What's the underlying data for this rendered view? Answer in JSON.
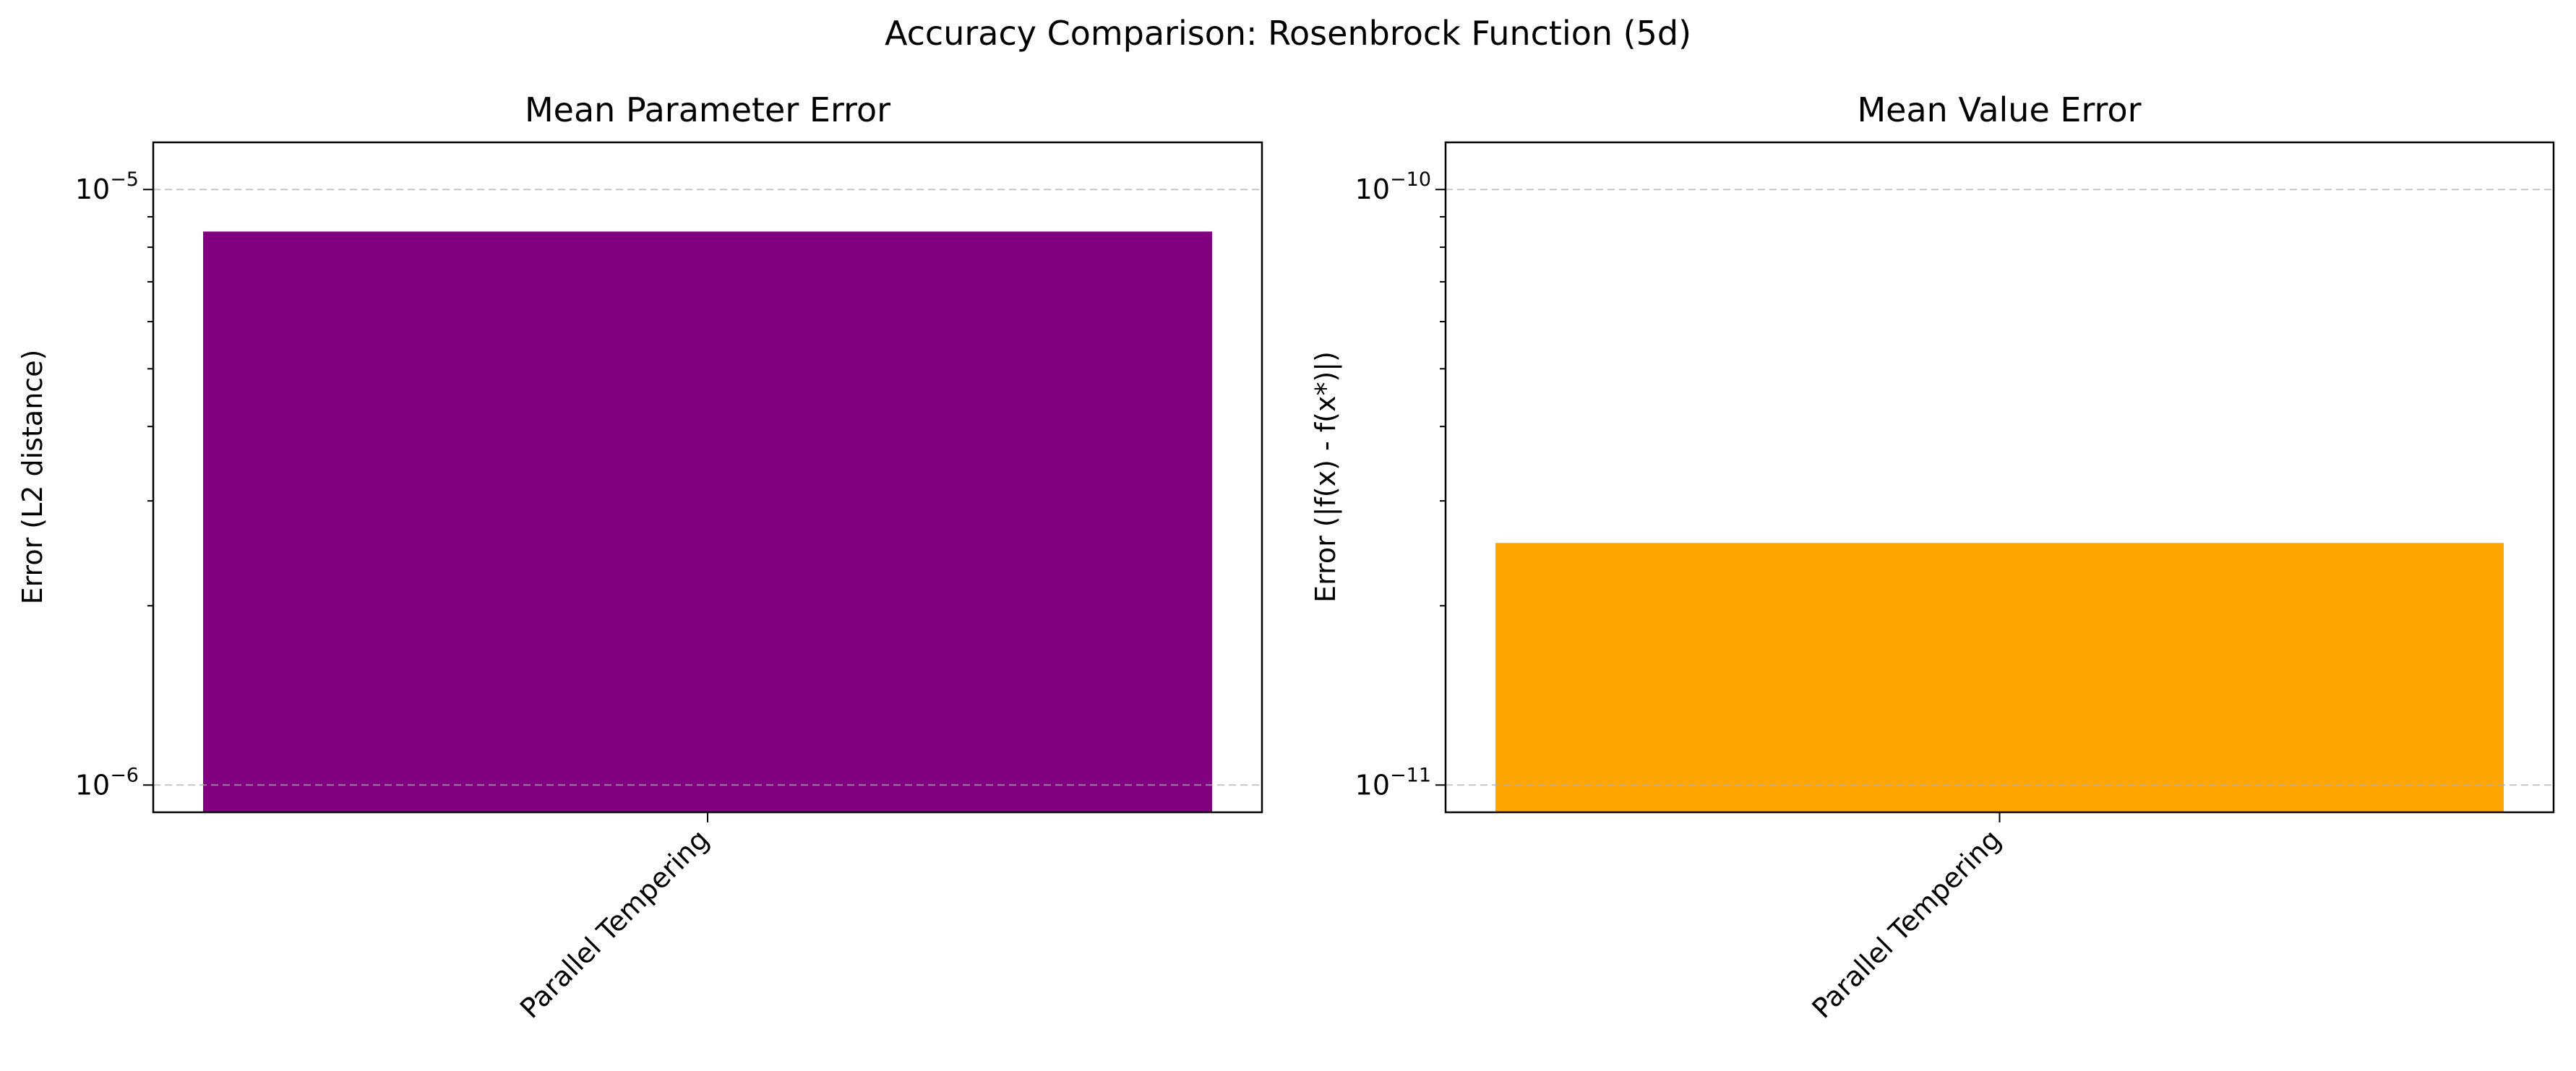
{
  "figure": {
    "suptitle": "Accuracy Comparison: Rosenbrock Function (5d)"
  },
  "chart_data": [
    {
      "type": "bar",
      "title": "Mean Parameter Error",
      "xlabel": "",
      "ylabel": "Error (L2 distance)",
      "yscale": "log",
      "ylim": [
        9e-07,
        1.2e-05
      ],
      "yticks": [
        {
          "value": 1e-06,
          "base": "10",
          "exp": "−6"
        },
        {
          "value": 1e-05,
          "base": "10",
          "exp": "−5"
        }
      ],
      "categories": [
        "Parallel Tempering"
      ],
      "values": [
        8.5e-06
      ],
      "color": "#800080",
      "grid": "y-major-dashed"
    },
    {
      "type": "bar",
      "title": "Mean Value Error",
      "xlabel": "",
      "ylabel": "Error (|f(x) - f(x*)|)",
      "yscale": "log",
      "ylim": [
        9e-12,
        1.2e-10
      ],
      "yticks": [
        {
          "value": 1e-11,
          "base": "10",
          "exp": "−11"
        },
        {
          "value": 1e-10,
          "base": "10",
          "exp": "−10"
        }
      ],
      "categories": [
        "Parallel Tempering"
      ],
      "values": [
        2.55e-11
      ],
      "color": "#FFA500",
      "grid": "y-major-dashed"
    }
  ]
}
